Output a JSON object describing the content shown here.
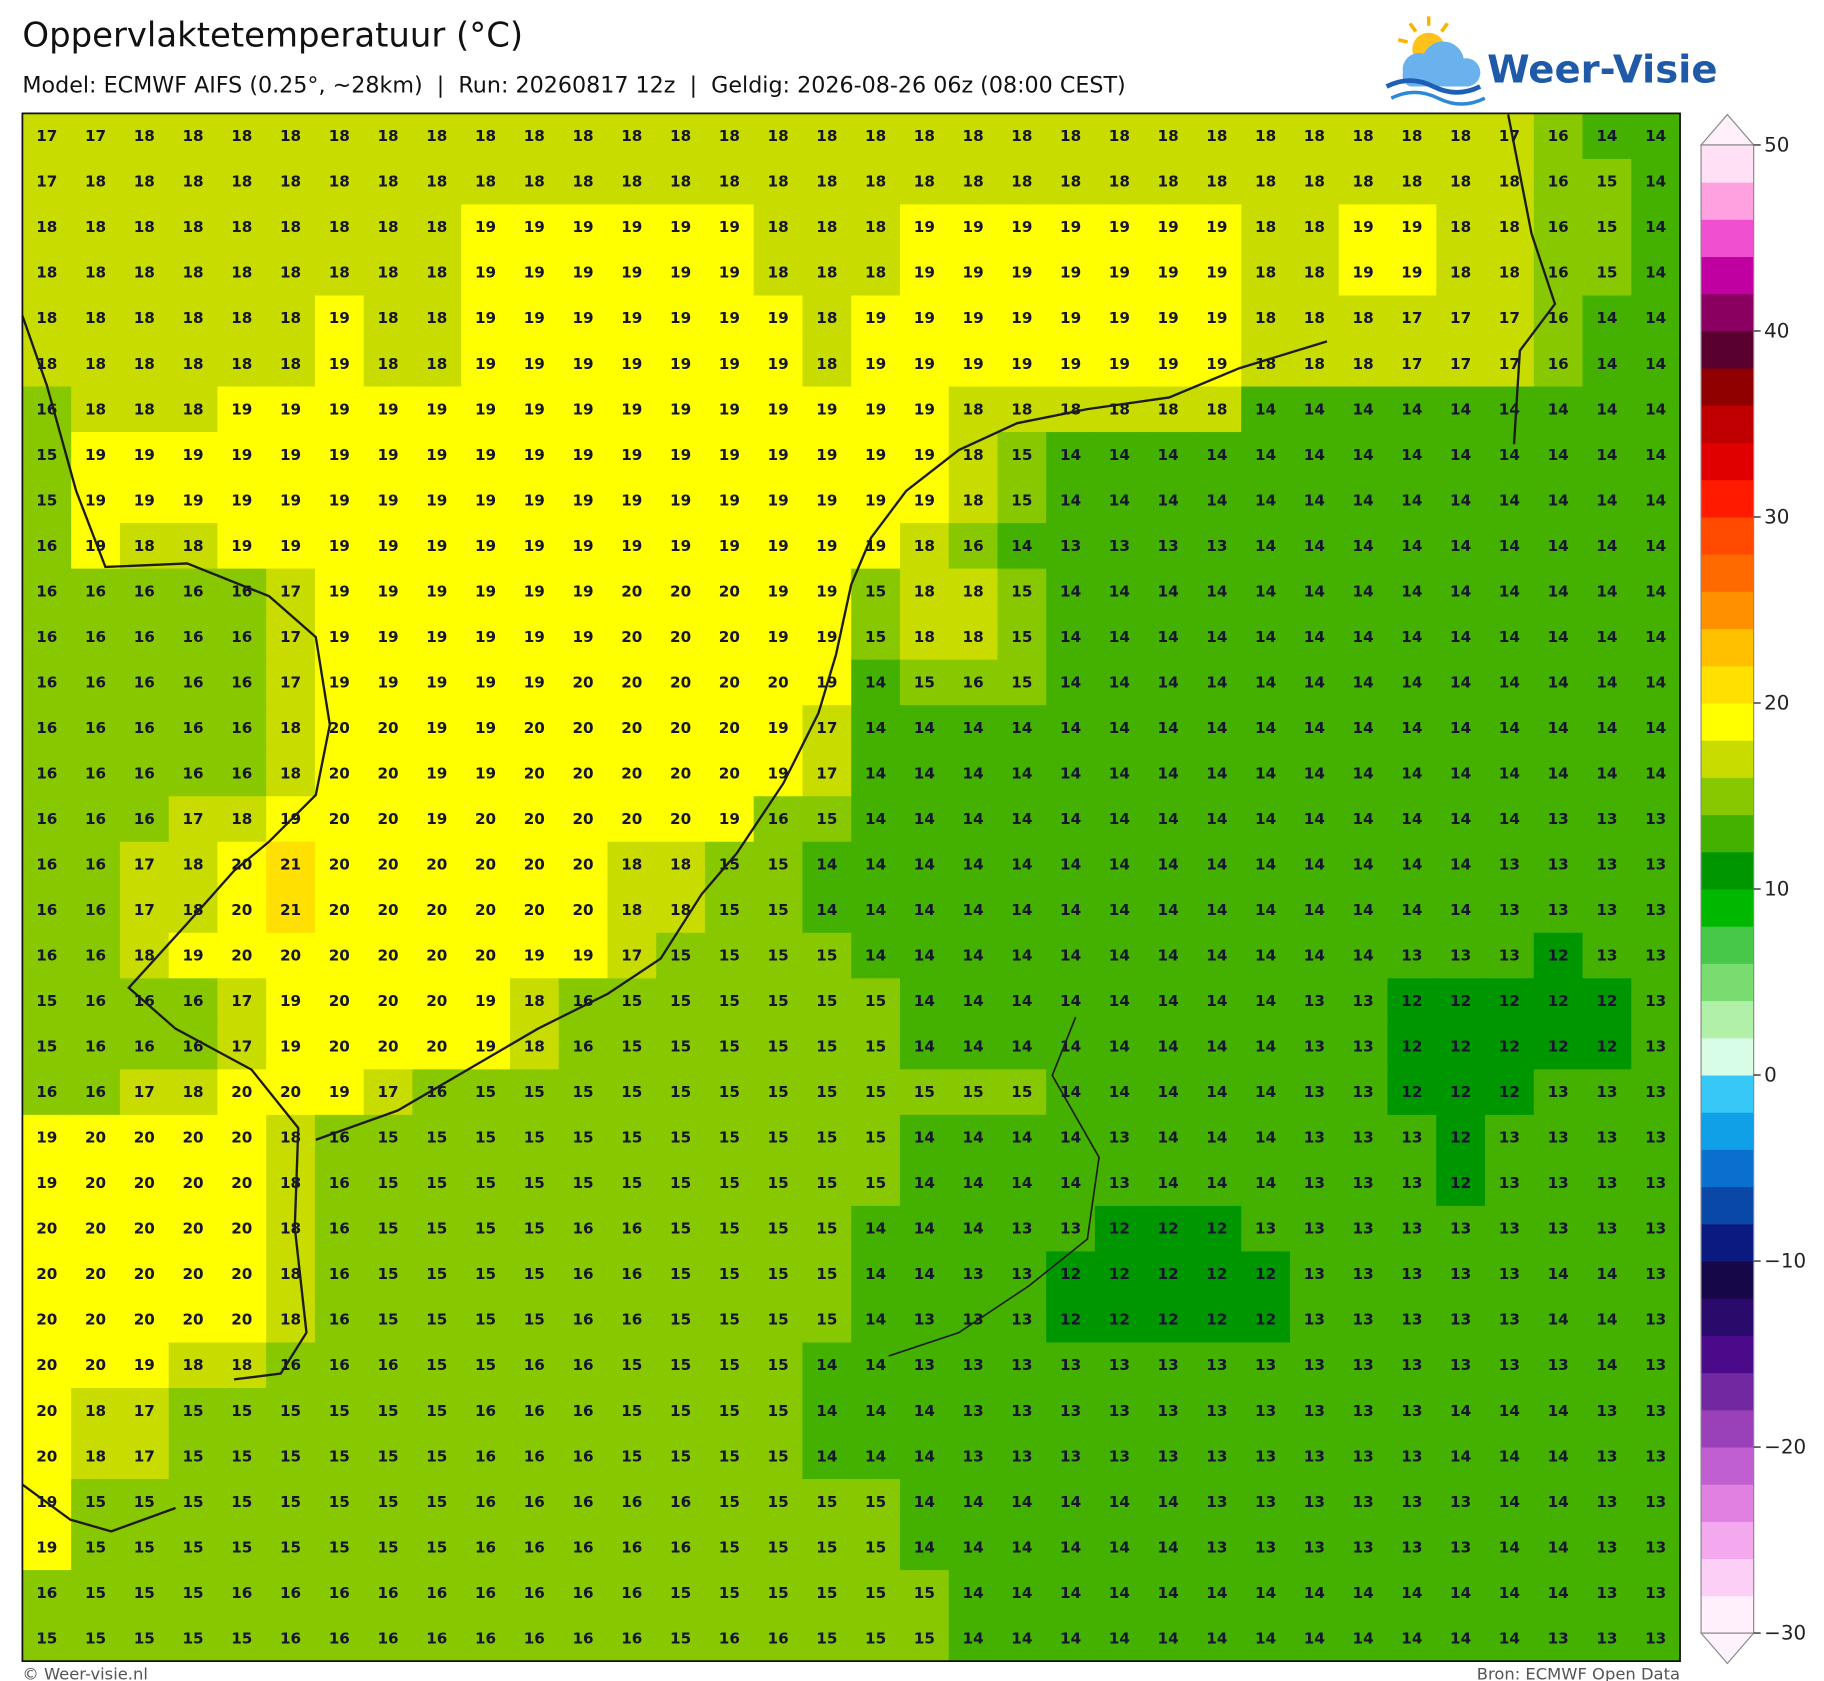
{
  "header": {
    "title": "Oppervlaktetemperatuur (°C)",
    "subtitle": "Model: ECMWF AIFS (0.25°, ~28km)  |  Run: 20260817 12z  |  Geldig: 2026-08-26 06z (08:00 CEST)"
  },
  "logo": {
    "text": "Weer-Visie"
  },
  "map": {
    "values": [
      [
        17,
        17,
        18,
        18,
        18,
        18,
        18,
        18,
        18,
        18,
        18,
        18,
        18,
        18,
        18,
        18,
        18,
        18,
        18,
        18,
        18,
        18,
        18,
        18,
        18,
        18,
        18,
        18,
        18,
        18,
        17,
        16,
        14,
        14
      ],
      [
        17,
        18,
        18,
        18,
        18,
        18,
        18,
        18,
        18,
        18,
        18,
        18,
        18,
        18,
        18,
        18,
        18,
        18,
        18,
        18,
        18,
        18,
        18,
        18,
        18,
        18,
        18,
        18,
        18,
        18,
        18,
        16,
        15,
        14
      ],
      [
        18,
        18,
        18,
        18,
        18,
        18,
        18,
        18,
        18,
        19,
        19,
        19,
        19,
        19,
        19,
        18,
        18,
        18,
        19,
        19,
        19,
        19,
        19,
        19,
        19,
        18,
        18,
        19,
        19,
        18,
        18,
        16,
        15,
        14
      ],
      [
        18,
        18,
        18,
        18,
        18,
        18,
        18,
        18,
        18,
        19,
        19,
        19,
        19,
        19,
        19,
        18,
        18,
        18,
        19,
        19,
        19,
        19,
        19,
        19,
        19,
        18,
        18,
        19,
        19,
        18,
        18,
        16,
        15,
        14
      ],
      [
        18,
        18,
        18,
        18,
        18,
        18,
        19,
        18,
        18,
        19,
        19,
        19,
        19,
        19,
        19,
        19,
        18,
        19,
        19,
        19,
        19,
        19,
        19,
        19,
        19,
        18,
        18,
        18,
        17,
        17,
        17,
        16,
        14,
        14
      ],
      [
        18,
        18,
        18,
        18,
        18,
        18,
        19,
        18,
        18,
        19,
        19,
        19,
        19,
        19,
        19,
        19,
        18,
        19,
        19,
        19,
        19,
        19,
        19,
        19,
        19,
        18,
        18,
        18,
        17,
        17,
        17,
        16,
        14,
        14
      ],
      [
        16,
        18,
        18,
        18,
        19,
        19,
        19,
        19,
        19,
        19,
        19,
        19,
        19,
        19,
        19,
        19,
        19,
        19,
        19,
        18,
        18,
        18,
        18,
        18,
        18,
        14,
        14,
        14,
        14,
        14,
        14,
        14,
        14,
        14
      ],
      [
        15,
        19,
        19,
        19,
        19,
        19,
        19,
        19,
        19,
        19,
        19,
        19,
        19,
        19,
        19,
        19,
        19,
        19,
        19,
        18,
        15,
        14,
        14,
        14,
        14,
        14,
        14,
        14,
        14,
        14,
        14,
        14,
        14,
        14
      ],
      [
        15,
        19,
        19,
        19,
        19,
        19,
        19,
        19,
        19,
        19,
        19,
        19,
        19,
        19,
        19,
        19,
        19,
        19,
        19,
        18,
        15,
        14,
        14,
        14,
        14,
        14,
        14,
        14,
        14,
        14,
        14,
        14,
        14,
        14
      ],
      [
        16,
        19,
        18,
        18,
        19,
        19,
        19,
        19,
        19,
        19,
        19,
        19,
        19,
        19,
        19,
        19,
        19,
        19,
        18,
        16,
        14,
        13,
        13,
        13,
        13,
        14,
        14,
        14,
        14,
        14,
        14,
        14,
        14,
        14
      ],
      [
        16,
        16,
        16,
        16,
        16,
        17,
        19,
        19,
        19,
        19,
        19,
        19,
        20,
        20,
        20,
        19,
        19,
        15,
        18,
        18,
        15,
        14,
        14,
        14,
        14,
        14,
        14,
        14,
        14,
        14,
        14,
        14,
        14,
        14
      ],
      [
        16,
        16,
        16,
        16,
        16,
        17,
        19,
        19,
        19,
        19,
        19,
        19,
        20,
        20,
        20,
        19,
        19,
        15,
        18,
        18,
        15,
        14,
        14,
        14,
        14,
        14,
        14,
        14,
        14,
        14,
        14,
        14,
        14,
        14
      ],
      [
        16,
        16,
        16,
        16,
        16,
        17,
        19,
        19,
        19,
        19,
        19,
        20,
        20,
        20,
        20,
        20,
        19,
        14,
        15,
        16,
        15,
        14,
        14,
        14,
        14,
        14,
        14,
        14,
        14,
        14,
        14,
        14,
        14,
        14
      ],
      [
        16,
        16,
        16,
        16,
        16,
        18,
        20,
        20,
        19,
        19,
        20,
        20,
        20,
        20,
        20,
        19,
        17,
        14,
        14,
        14,
        14,
        14,
        14,
        14,
        14,
        14,
        14,
        14,
        14,
        14,
        14,
        14,
        14,
        14
      ],
      [
        16,
        16,
        16,
        16,
        16,
        18,
        20,
        20,
        19,
        19,
        20,
        20,
        20,
        20,
        20,
        19,
        17,
        14,
        14,
        14,
        14,
        14,
        14,
        14,
        14,
        14,
        14,
        14,
        14,
        14,
        14,
        14,
        14,
        14
      ],
      [
        16,
        16,
        16,
        17,
        18,
        19,
        20,
        20,
        19,
        20,
        20,
        20,
        20,
        20,
        19,
        16,
        15,
        14,
        14,
        14,
        14,
        14,
        14,
        14,
        14,
        14,
        14,
        14,
        14,
        14,
        14,
        13,
        13,
        13
      ],
      [
        16,
        16,
        17,
        18,
        20,
        21,
        20,
        20,
        20,
        20,
        20,
        20,
        18,
        18,
        15,
        15,
        14,
        14,
        14,
        14,
        14,
        14,
        14,
        14,
        14,
        14,
        14,
        14,
        14,
        14,
        13,
        13,
        13,
        13
      ],
      [
        16,
        16,
        17,
        18,
        20,
        21,
        20,
        20,
        20,
        20,
        20,
        20,
        18,
        18,
        15,
        15,
        14,
        14,
        14,
        14,
        14,
        14,
        14,
        14,
        14,
        14,
        14,
        14,
        14,
        14,
        13,
        13,
        13,
        13
      ],
      [
        16,
        16,
        18,
        19,
        20,
        20,
        20,
        20,
        20,
        20,
        19,
        19,
        17,
        15,
        15,
        15,
        15,
        14,
        14,
        14,
        14,
        14,
        14,
        14,
        14,
        14,
        14,
        14,
        13,
        13,
        13,
        12,
        13,
        13
      ],
      [
        15,
        16,
        16,
        16,
        17,
        19,
        20,
        20,
        20,
        19,
        18,
        16,
        15,
        15,
        15,
        15,
        15,
        15,
        14,
        14,
        14,
        14,
        14,
        14,
        14,
        14,
        13,
        13,
        12,
        12,
        12,
        12,
        12,
        13
      ],
      [
        15,
        16,
        16,
        16,
        17,
        19,
        20,
        20,
        20,
        19,
        18,
        16,
        15,
        15,
        15,
        15,
        15,
        15,
        14,
        14,
        14,
        14,
        14,
        14,
        14,
        14,
        13,
        13,
        12,
        12,
        12,
        12,
        12,
        13
      ],
      [
        16,
        16,
        17,
        18,
        20,
        20,
        19,
        17,
        16,
        15,
        15,
        15,
        15,
        15,
        15,
        15,
        15,
        15,
        15,
        15,
        15,
        14,
        14,
        14,
        14,
        14,
        13,
        13,
        12,
        12,
        12,
        13,
        13,
        13
      ],
      [
        19,
        20,
        20,
        20,
        20,
        18,
        16,
        15,
        15,
        15,
        15,
        15,
        15,
        15,
        15,
        15,
        15,
        15,
        14,
        14,
        14,
        14,
        13,
        14,
        14,
        14,
        13,
        13,
        13,
        12,
        13,
        13,
        13,
        13
      ],
      [
        19,
        20,
        20,
        20,
        20,
        18,
        16,
        15,
        15,
        15,
        15,
        15,
        15,
        15,
        15,
        15,
        15,
        15,
        14,
        14,
        14,
        14,
        13,
        14,
        14,
        14,
        13,
        13,
        13,
        12,
        13,
        13,
        13,
        13
      ],
      [
        20,
        20,
        20,
        20,
        20,
        18,
        16,
        15,
        15,
        15,
        15,
        16,
        16,
        15,
        15,
        15,
        15,
        14,
        14,
        14,
        13,
        13,
        12,
        12,
        12,
        13,
        13,
        13,
        13,
        13,
        13,
        13,
        13,
        13
      ],
      [
        20,
        20,
        20,
        20,
        20,
        18,
        16,
        15,
        15,
        15,
        15,
        16,
        16,
        15,
        15,
        15,
        15,
        14,
        14,
        13,
        13,
        12,
        12,
        12,
        12,
        12,
        13,
        13,
        13,
        13,
        13,
        14,
        14,
        13
      ],
      [
        20,
        20,
        20,
        20,
        20,
        18,
        16,
        15,
        15,
        15,
        15,
        16,
        16,
        15,
        15,
        15,
        15,
        14,
        13,
        13,
        13,
        12,
        12,
        12,
        12,
        12,
        13,
        13,
        13,
        13,
        13,
        14,
        14,
        13
      ],
      [
        20,
        20,
        19,
        18,
        18,
        16,
        16,
        16,
        15,
        15,
        16,
        16,
        15,
        15,
        15,
        15,
        14,
        14,
        13,
        13,
        13,
        13,
        13,
        13,
        13,
        13,
        13,
        13,
        13,
        13,
        13,
        13,
        14,
        13
      ],
      [
        20,
        18,
        17,
        15,
        15,
        15,
        15,
        15,
        15,
        16,
        16,
        16,
        15,
        15,
        15,
        15,
        14,
        14,
        14,
        13,
        13,
        13,
        13,
        13,
        13,
        13,
        13,
        13,
        13,
        14,
        14,
        14,
        13,
        13
      ],
      [
        20,
        18,
        17,
        15,
        15,
        15,
        15,
        15,
        15,
        16,
        16,
        16,
        15,
        15,
        15,
        15,
        14,
        14,
        14,
        13,
        13,
        13,
        13,
        13,
        13,
        13,
        13,
        13,
        13,
        14,
        14,
        14,
        13,
        13
      ],
      [
        19,
        15,
        15,
        15,
        15,
        15,
        15,
        15,
        15,
        16,
        16,
        16,
        16,
        16,
        15,
        15,
        15,
        15,
        14,
        14,
        14,
        14,
        14,
        14,
        13,
        13,
        13,
        13,
        13,
        13,
        14,
        14,
        13,
        13
      ],
      [
        19,
        15,
        15,
        15,
        15,
        15,
        15,
        15,
        15,
        16,
        16,
        16,
        16,
        16,
        15,
        15,
        15,
        15,
        14,
        14,
        14,
        14,
        14,
        14,
        13,
        13,
        13,
        13,
        13,
        13,
        14,
        14,
        13,
        13
      ],
      [
        16,
        15,
        15,
        15,
        16,
        16,
        16,
        16,
        16,
        16,
        16,
        16,
        16,
        15,
        15,
        15,
        15,
        15,
        15,
        14,
        14,
        14,
        14,
        14,
        14,
        14,
        14,
        14,
        14,
        14,
        14,
        14,
        13,
        13
      ],
      [
        15,
        15,
        15,
        15,
        15,
        16,
        16,
        16,
        16,
        16,
        16,
        16,
        16,
        15,
        16,
        16,
        15,
        15,
        15,
        14,
        14,
        14,
        14,
        14,
        14,
        14,
        14,
        14,
        14,
        14,
        14,
        13,
        13,
        13
      ]
    ]
  },
  "colorbar": {
    "ylim": [
      -30,
      50
    ],
    "yticks": [
      {
        "value": -30,
        "label": "−30"
      },
      {
        "value": -20,
        "label": "−20"
      },
      {
        "value": -10,
        "label": "−10"
      },
      0,
      10,
      20,
      30,
      40,
      50
    ],
    "colors": [
      "#fff0fc",
      "#fcd0f6",
      "#f4a8ee",
      "#e080e0",
      "#c060d0",
      "#9a40b8",
      "#7228a0",
      "#4a0a8a",
      "#2a0a6a",
      "#160848",
      "#0a1a80",
      "#0a48a8",
      "#0a70d0",
      "#10a0e8",
      "#38c8f8",
      "#d8fde6",
      "#b0f0a8",
      "#78dc70",
      "#48c848",
      "#00b800",
      "#009600",
      "#44b000",
      "#88c800",
      "#c8dc00",
      "#ffff00",
      "#ffe000",
      "#ffc000",
      "#ff9000",
      "#ff6a00",
      "#ff4a00",
      "#ff1a00",
      "#e00000",
      "#c00000",
      "#900000",
      "#5a0030",
      "#8a0060",
      "#c000a0",
      "#f050d0",
      "#ffa0e0",
      "#ffe0f4"
    ]
  },
  "footer": {
    "left": "© Weer-visie.nl",
    "right": "Bron: ECMWF Open Data"
  }
}
